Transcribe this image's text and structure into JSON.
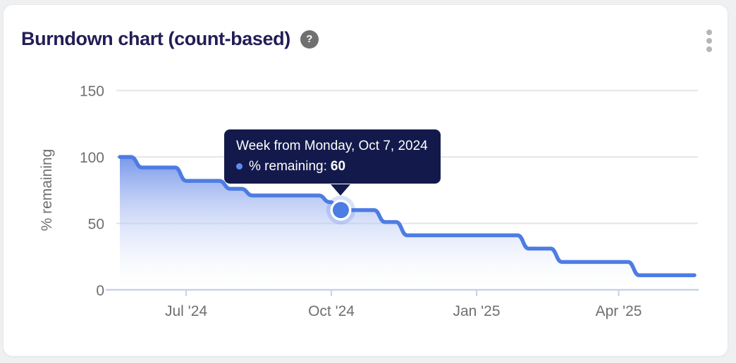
{
  "header": {
    "title": "Burndown chart (count-based)",
    "help_glyph": "?"
  },
  "tooltip": {
    "title": "Week from Monday, Oct 7, 2024",
    "series_label": "% remaining:",
    "value": "60",
    "background": "#131a4b",
    "bullet_color": "#5f8cf0"
  },
  "colors": {
    "line": "#4d7ce3",
    "area_top": "#5a80e6",
    "title_text": "#221d56",
    "axis_text": "#6f6f6f",
    "gridline": "#e5e5e5",
    "axis_line": "#c7d3e8",
    "card_background": "#ffffff",
    "page_background": "#eff0f2",
    "tooltip_background": "#131a4b"
  },
  "chart_data": {
    "type": "area",
    "subtype": "smoothed-step-line-weekly",
    "title": "Burndown chart (count-based)",
    "xlabel": "",
    "ylabel": "% remaining",
    "ylim": [
      0,
      150
    ],
    "y_ticks": [
      0,
      50,
      100,
      150
    ],
    "grid": "horizontal",
    "legend": "none",
    "x_ticks": [
      {
        "label": "Jul '24",
        "date": "2024-07-01"
      },
      {
        "label": "Oct '24",
        "date": "2024-10-01"
      },
      {
        "label": "Jan '25",
        "date": "2025-01-01"
      },
      {
        "label": "Apr '25",
        "date": "2025-04-01"
      }
    ],
    "highlight": {
      "index": 20,
      "week": "2024-10-07",
      "value": 60
    },
    "points": [
      {
        "week": "2024-05-20",
        "value": 100
      },
      {
        "week": "2024-05-27",
        "value": 100
      },
      {
        "week": "2024-06-03",
        "value": 92
      },
      {
        "week": "2024-06-10",
        "value": 92
      },
      {
        "week": "2024-06-17",
        "value": 92
      },
      {
        "week": "2024-06-24",
        "value": 92
      },
      {
        "week": "2024-07-01",
        "value": 82
      },
      {
        "week": "2024-07-08",
        "value": 82
      },
      {
        "week": "2024-07-15",
        "value": 82
      },
      {
        "week": "2024-07-22",
        "value": 82
      },
      {
        "week": "2024-07-29",
        "value": 76
      },
      {
        "week": "2024-08-05",
        "value": 76
      },
      {
        "week": "2024-08-12",
        "value": 71
      },
      {
        "week": "2024-08-19",
        "value": 71
      },
      {
        "week": "2024-08-26",
        "value": 71
      },
      {
        "week": "2024-09-02",
        "value": 71
      },
      {
        "week": "2024-09-09",
        "value": 71
      },
      {
        "week": "2024-09-16",
        "value": 71
      },
      {
        "week": "2024-09-23",
        "value": 71
      },
      {
        "week": "2024-09-30",
        "value": 66
      },
      {
        "week": "2024-10-07",
        "value": 60
      },
      {
        "week": "2024-10-14",
        "value": 60
      },
      {
        "week": "2024-10-21",
        "value": 60
      },
      {
        "week": "2024-10-28",
        "value": 60
      },
      {
        "week": "2024-11-04",
        "value": 51
      },
      {
        "week": "2024-11-11",
        "value": 51
      },
      {
        "week": "2024-11-18",
        "value": 41
      },
      {
        "week": "2024-11-25",
        "value": 41
      },
      {
        "week": "2024-12-02",
        "value": 41
      },
      {
        "week": "2024-12-09",
        "value": 41
      },
      {
        "week": "2024-12-16",
        "value": 41
      },
      {
        "week": "2024-12-23",
        "value": 41
      },
      {
        "week": "2024-12-30",
        "value": 41
      },
      {
        "week": "2025-01-06",
        "value": 41
      },
      {
        "week": "2025-01-13",
        "value": 41
      },
      {
        "week": "2025-01-20",
        "value": 41
      },
      {
        "week": "2025-01-27",
        "value": 41
      },
      {
        "week": "2025-02-03",
        "value": 31
      },
      {
        "week": "2025-02-10",
        "value": 31
      },
      {
        "week": "2025-02-17",
        "value": 31
      },
      {
        "week": "2025-02-24",
        "value": 21
      },
      {
        "week": "2025-03-03",
        "value": 21
      },
      {
        "week": "2025-03-10",
        "value": 21
      },
      {
        "week": "2025-03-17",
        "value": 21
      },
      {
        "week": "2025-03-24",
        "value": 21
      },
      {
        "week": "2025-03-31",
        "value": 21
      },
      {
        "week": "2025-04-07",
        "value": 21
      },
      {
        "week": "2025-04-14",
        "value": 11
      },
      {
        "week": "2025-04-21",
        "value": 11
      },
      {
        "week": "2025-04-28",
        "value": 11
      },
      {
        "week": "2025-05-05",
        "value": 11
      },
      {
        "week": "2025-05-12",
        "value": 11
      },
      {
        "week": "2025-05-19",
        "value": 11
      }
    ]
  }
}
